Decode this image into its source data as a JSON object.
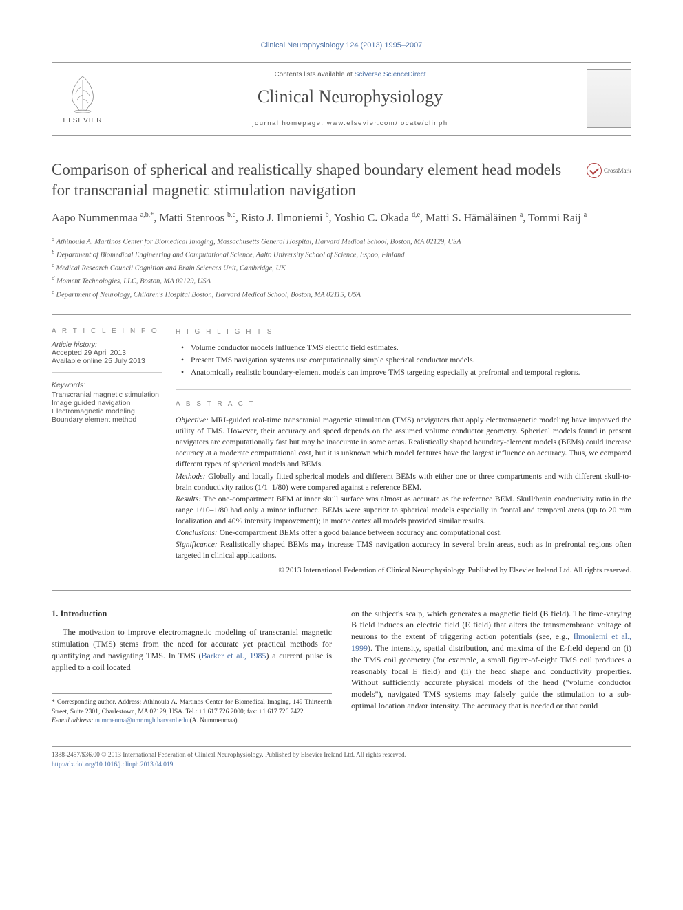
{
  "header": {
    "running_head": "Clinical Neurophysiology 124 (2013) 1995–2007",
    "contents_prefix": "Contents lists available at ",
    "contents_link": "SciVerse ScienceDirect",
    "journal_title": "Clinical Neurophysiology",
    "homepage_label": "journal homepage: www.elsevier.com/locate/clinph",
    "publisher": "ELSEVIER"
  },
  "article": {
    "title": "Comparison of spherical and realistically shaped boundary element head models for transcranial magnetic stimulation navigation",
    "crossmark": "CrossMark",
    "authors_html": "Aapo Nummenmaa <sup>a,b,*</sup>, Matti Stenroos <sup>b,c</sup>, Risto J. Ilmoniemi <sup>b</sup>, Yoshio C. Okada <sup>d,e</sup>, Matti S. Hämäläinen <sup>a</sup>, Tommi Raij <sup>a</sup>",
    "affiliations": [
      "a Athinoula A. Martinos Center for Biomedical Imaging, Massachusetts General Hospital, Harvard Medical School, Boston, MA 02129, USA",
      "b Department of Biomedical Engineering and Computational Science, Aalto University School of Science, Espoo, Finland",
      "c Medical Research Council Cognition and Brain Sciences Unit, Cambridge, UK",
      "d Moment Technologies, LLC, Boston, MA 02129, USA",
      "e Department of Neurology, Children's Hospital Boston, Harvard Medical School, Boston, MA 02115, USA"
    ]
  },
  "info": {
    "label": "A R T I C L E   I N F O",
    "history_label": "Article history:",
    "accepted": "Accepted 29 April 2013",
    "online": "Available online 25 July 2013",
    "keywords_label": "Keywords:",
    "keywords": [
      "Transcranial magnetic stimulation",
      "Image guided navigation",
      "Electromagnetic modeling",
      "Boundary element method"
    ]
  },
  "highlights": {
    "label": "H I G H L I G H T S",
    "items": [
      "Volume conductor models influence TMS electric field estimates.",
      "Present TMS navigation systems use computationally simple spherical conductor models.",
      "Anatomically realistic boundary-element models can improve TMS targeting especially at prefrontal and temporal regions."
    ]
  },
  "abstract": {
    "label": "A B S T R A C T",
    "objective": "Objective: MRI-guided real-time transcranial magnetic stimulation (TMS) navigators that apply electromagnetic modeling have improved the utility of TMS. However, their accuracy and speed depends on the assumed volume conductor geometry. Spherical models found in present navigators are computationally fast but may be inaccurate in some areas. Realistically shaped boundary-element models (BEMs) could increase accuracy at a moderate computational cost, but it is unknown which model features have the largest influence on accuracy. Thus, we compared different types of spherical models and BEMs.",
    "methods": "Methods: Globally and locally fitted spherical models and different BEMs with either one or three compartments and with different skull-to-brain conductivity ratios (1/1–1/80) were compared against a reference BEM.",
    "results": "Results: The one-compartment BEM at inner skull surface was almost as accurate as the reference BEM. Skull/brain conductivity ratio in the range 1/10–1/80 had only a minor influence. BEMs were superior to spherical models especially in frontal and temporal areas (up to 20 mm localization and 40% intensity improvement); in motor cortex all models provided similar results.",
    "conclusions": "Conclusions: One-compartment BEMs offer a good balance between accuracy and computational cost.",
    "significance": "Significance: Realistically shaped BEMs may increase TMS navigation accuracy in several brain areas, such as in prefrontal regions often targeted in clinical applications.",
    "copyright": "© 2013 International Federation of Clinical Neurophysiology. Published by Elsevier Ireland Ltd. All rights reserved."
  },
  "body": {
    "intro_heading": "1. Introduction",
    "left_p1": "The motivation to improve electromagnetic modeling of transcranial magnetic stimulation (TMS) stems from the need for accurate yet practical methods for quantifying and navigating TMS. In TMS (",
    "left_cite1": "Barker et al., 1985",
    "left_p1b": ") a current pulse is applied to a coil located",
    "right_p1a": "on the subject's scalp, which generates a magnetic field (B field). The time-varying B field induces an electric field (E field) that alters the transmembrane voltage of neurons to the extent of triggering action potentials (see, e.g., ",
    "right_cite1": "Ilmoniemi et al., 1999",
    "right_p1b": "). The intensity, spatial distribution, and maxima of the E-field depend on (i) the TMS coil geometry (for example, a small figure-of-eight TMS coil produces a reasonably focal E field) and (ii) the head shape and conductivity properties. Without sufficiently accurate physical models of the head (\"volume conductor models\"), navigated TMS systems may falsely guide the stimulation to a sub-optimal location and/or intensity. The accuracy that is needed or that could"
  },
  "corr": {
    "star": "* Corresponding author. Address: Athinoula A. Martinos Center for Biomedical Imaging, 149 Thirteenth Street, Suite 2301, Charlestown, MA 02129, USA. Tel.: +1 617 726 2000; fax: +1 617 726 7422.",
    "email_label": "E-mail address: ",
    "email": "nummenma@nmr.mgh.harvard.edu",
    "email_suffix": " (A. Nummenmaa)."
  },
  "footer": {
    "line1": "1388-2457/$36.00 © 2013 International Federation of Clinical Neurophysiology. Published by Elsevier Ireland Ltd. All rights reserved.",
    "doi": "http://dx.doi.org/10.1016/j.clinph.2013.04.019"
  },
  "colors": {
    "link": "#4a6fa5",
    "text": "#333333",
    "muted": "#555555",
    "rule": "#999999"
  }
}
